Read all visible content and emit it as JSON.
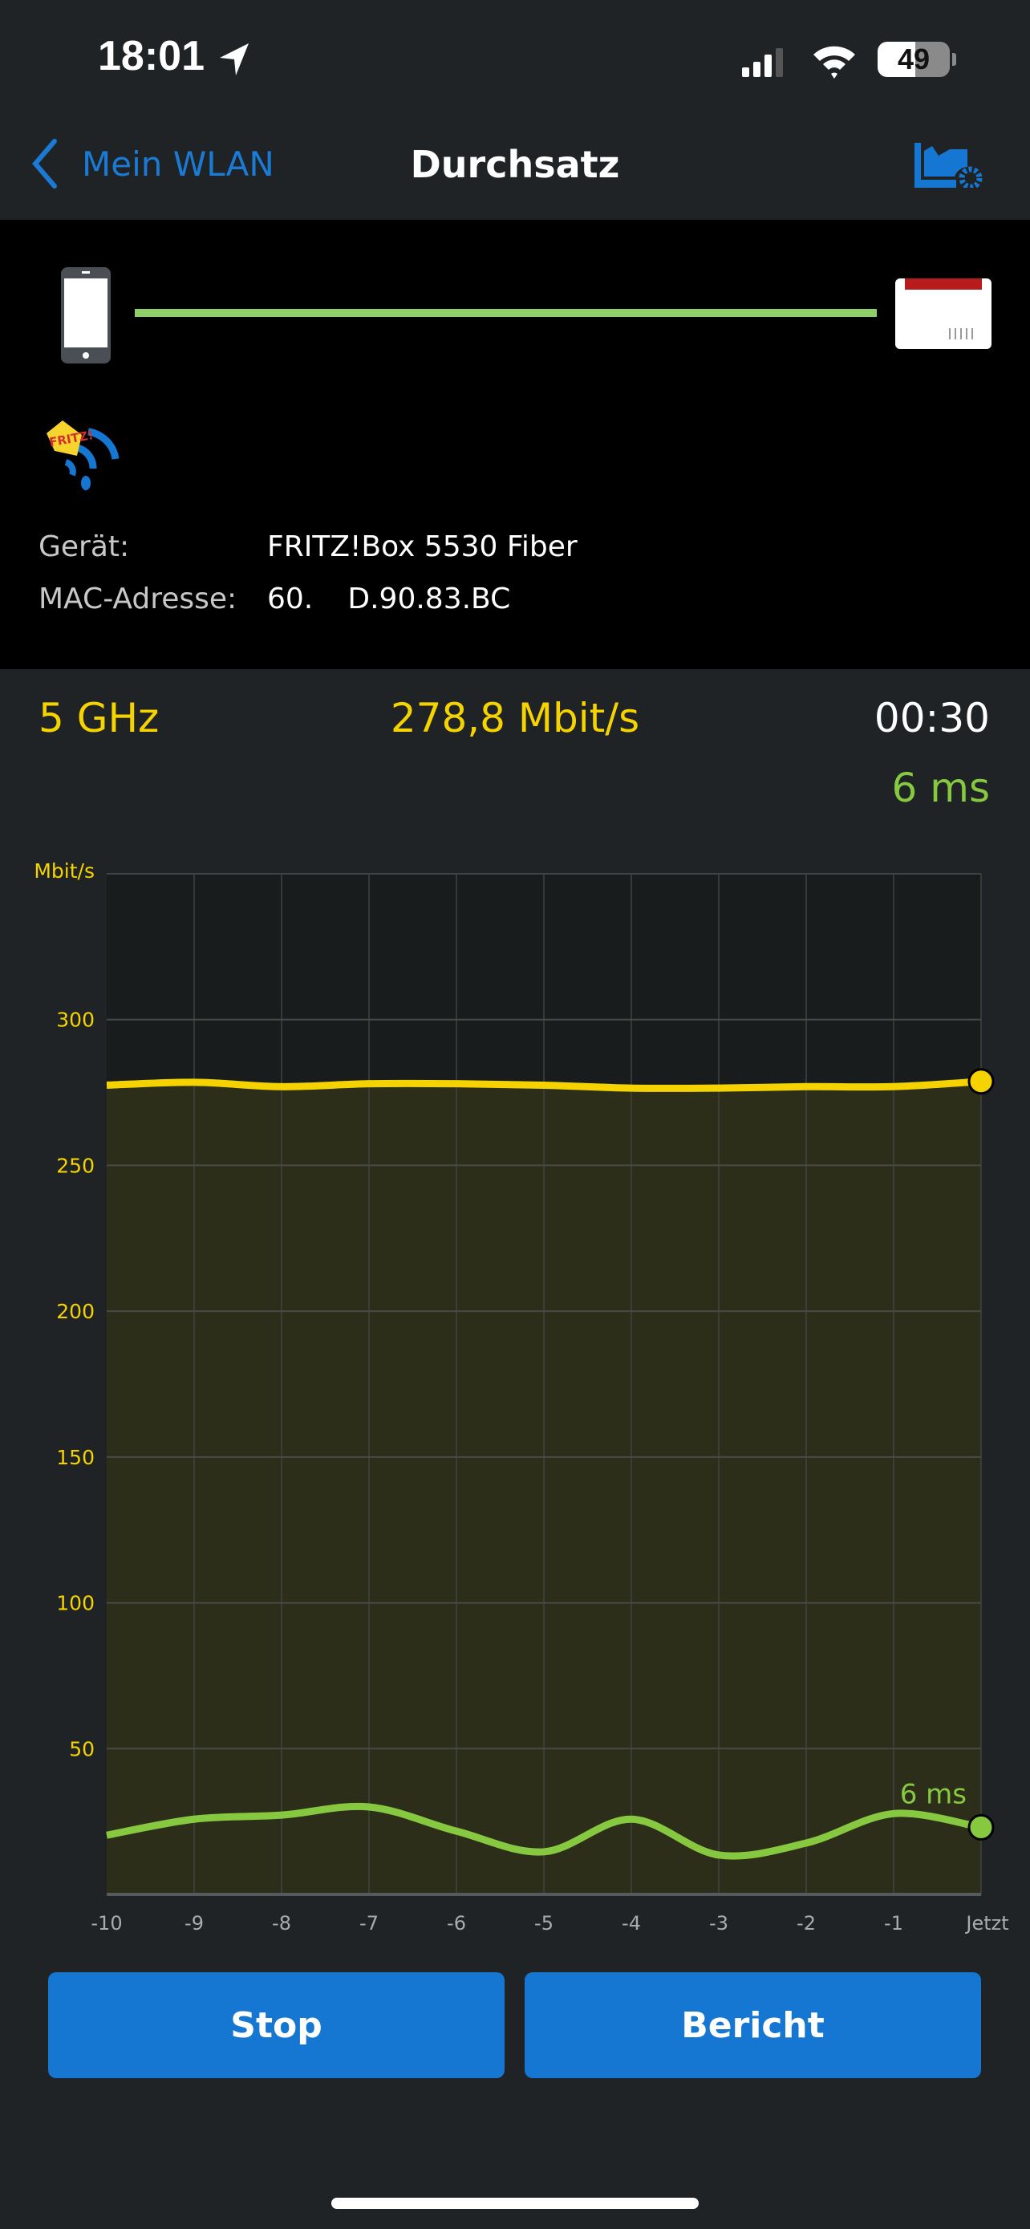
{
  "status_bar": {
    "time": "18:01",
    "battery": "49",
    "icons": [
      "location-arrow-icon",
      "signal-icon",
      "wifi-icon",
      "battery-icon"
    ]
  },
  "nav": {
    "back_label": "Mein WLAN",
    "title": "Durchsatz",
    "action_icon": "chart-settings-icon"
  },
  "connection": {
    "device_icon": "smartphone-icon",
    "router_icon": "fritzbox-router-icon",
    "link_color": "#8fcf6a",
    "logo_text": "FRITZ!",
    "rows": [
      {
        "label": "Gerät:",
        "value": "FRITZ!Box 5530 Fiber"
      },
      {
        "label": "MAC-Adresse:",
        "value": "60.      D.90.83.BC"
      }
    ]
  },
  "stats": {
    "band": "5 GHz",
    "throughput": "278,8 Mbit/s",
    "elapsed": "00:30",
    "latency": "6 ms"
  },
  "colors": {
    "accent": "#1677d2",
    "throughput": "#f5d300",
    "latency": "#86c940",
    "background": "#202325"
  },
  "chart_data": {
    "type": "area",
    "ylabel": "Mbit/s",
    "ylim": [
      0,
      350
    ],
    "yticks": [
      50,
      100,
      150,
      200,
      250,
      300
    ],
    "x": [
      -10,
      -9,
      -8,
      -7,
      -6,
      -5,
      -4,
      -3,
      -2,
      -1,
      0
    ],
    "xtick_labels": [
      "-10",
      "-9",
      "-8",
      "-7",
      "-6",
      "-5",
      "-4",
      "-3",
      "-2",
      "-1",
      "Jetzt"
    ],
    "grid": true,
    "series": [
      {
        "key": "throughput",
        "color": "#f5d300",
        "values": [
          277.5,
          278.5,
          277,
          278,
          278,
          277.5,
          276.5,
          276.5,
          277,
          277,
          278.8
        ]
      },
      {
        "key": "latency",
        "name": "6 ms",
        "color": "#86c940",
        "values": [
          20.3,
          25.8,
          27.2,
          30,
          21.7,
          14.6,
          25.8,
          13.5,
          17.6,
          27.7,
          23
        ]
      }
    ]
  },
  "buttons": {
    "stop": "Stop",
    "report": "Bericht"
  }
}
